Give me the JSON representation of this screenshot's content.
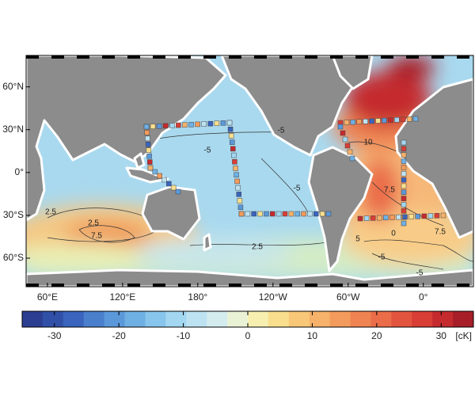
{
  "map": {
    "lon_range": [
      43,
      400
    ],
    "lat_range": [
      -80,
      82
    ],
    "lon_ticks": [
      {
        "value": 60,
        "label": "60°E"
      },
      {
        "value": 120,
        "label": "120°E"
      },
      {
        "value": 180,
        "label": "180°"
      },
      {
        "value": 240,
        "label": "120°W"
      },
      {
        "value": 300,
        "label": "60°W"
      },
      {
        "value": 360,
        "label": "0°"
      }
    ],
    "lat_ticks": [
      {
        "value": 60,
        "label": "60°N"
      },
      {
        "value": 30,
        "label": "30°N"
      },
      {
        "value": 0,
        "label": "0°"
      },
      {
        "value": -30,
        "label": "30°S"
      },
      {
        "value": -60,
        "label": "60°S"
      }
    ],
    "contour_labels": [
      "-5",
      "-5",
      "-5",
      "10",
      "7.5",
      "7.5",
      "7.5",
      "2.5",
      "2.5",
      "2.5",
      "0",
      "-5",
      "5",
      "-5"
    ]
  },
  "colorbar": {
    "range": [
      -35,
      35
    ],
    "ticks": [
      -30,
      -20,
      -10,
      0,
      10,
      20,
      30
    ],
    "unit": "[cK]",
    "colors": [
      "#2c3e91",
      "#3050a8",
      "#3a64bd",
      "#4a7fcc",
      "#5b98da",
      "#6fb0e4",
      "#88c5ec",
      "#a2d6f1",
      "#bde3f3",
      "#d5ecef",
      "#eaf2d6",
      "#f6efb0",
      "#f9df8d",
      "#f8c878",
      "#f6b26a",
      "#f39b5d",
      "#ef8452",
      "#ea6c48",
      "#e3543f",
      "#d83d36",
      "#c52a2e",
      "#a81e28"
    ]
  }
}
